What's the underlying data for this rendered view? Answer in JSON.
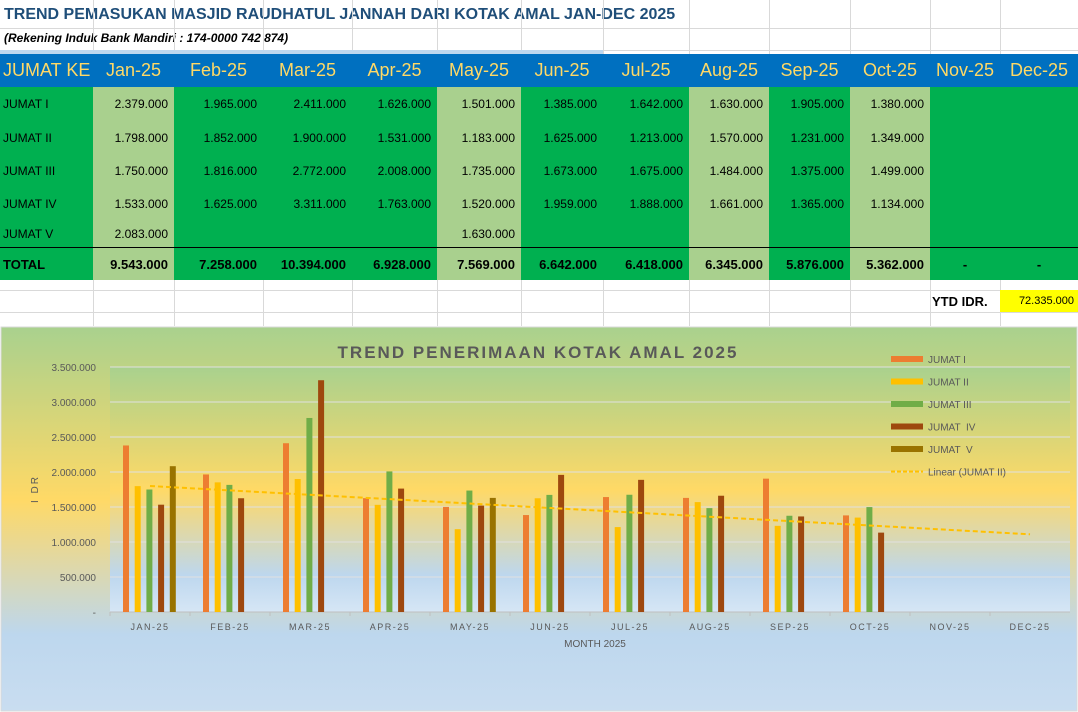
{
  "sheet": {
    "title": "TREND  PEMASUKAN MASJID RAUDHATUL JANNAH DARI KOTAK AMAL JAN-DEC 2025",
    "subtitle": "(Rekening Induk Bank Mandiri :  174-0000 742 874)",
    "header": [
      "JUMAT KE",
      "Jan-25",
      "Feb-25",
      "Mar-25",
      "Apr-25",
      "May-25",
      "Jun-25",
      "Jul-25",
      "Aug-25",
      "Sep-25",
      "Oct-25",
      "Nov-25",
      "Dec-25"
    ],
    "rows": [
      {
        "label": "JUMAT I",
        "values": [
          "2.379.000",
          "1.965.000",
          "2.411.000",
          "1.626.000",
          "1.501.000",
          "1.385.000",
          "1.642.000",
          "1.630.000",
          "1.905.000",
          "1.380.000",
          "",
          ""
        ]
      },
      {
        "label": "JUMAT II",
        "values": [
          "1.798.000",
          "1.852.000",
          "1.900.000",
          "1.531.000",
          "1.183.000",
          "1.625.000",
          "1.213.000",
          "1.570.000",
          "1.231.000",
          "1.349.000",
          "",
          ""
        ]
      },
      {
        "label": "JUMAT III",
        "values": [
          "1.750.000",
          "1.816.000",
          "2.772.000",
          "2.008.000",
          "1.735.000",
          "1.673.000",
          "1.675.000",
          "1.484.000",
          "1.375.000",
          "1.499.000",
          "",
          ""
        ]
      },
      {
        "label": "JUMAT  IV",
        "values": [
          "1.533.000",
          "1.625.000",
          "3.311.000",
          "1.763.000",
          "1.520.000",
          "1.959.000",
          "1.888.000",
          "1.661.000",
          "1.365.000",
          "1.134.000",
          "",
          ""
        ]
      },
      {
        "label": "JUMAT  V",
        "values": [
          "2.083.000",
          "",
          "",
          "",
          "1.630.000",
          "",
          "",
          "",
          "",
          "",
          "",
          ""
        ]
      }
    ],
    "total": {
      "label": "TOTAL",
      "values": [
        "9.543.000",
        "7.258.000",
        "10.394.000",
        "6.928.000",
        "7.569.000",
        "6.642.000",
        "6.418.000",
        "6.345.000",
        "5.876.000",
        "5.362.000",
        "-",
        "-"
      ]
    },
    "ytd_label": "YTD IDR.",
    "ytd_value": "72.335.000",
    "colors": {
      "header_bg": "#0070C0",
      "header_text": "#FFD966",
      "green": "#00B050",
      "light_green": "#A9D08E",
      "ytd": "#FFFF00",
      "title": "#1F4E79"
    }
  },
  "chart_data": {
    "type": "bar",
    "title": "TREND PENERIMAAN KOTAK AMAL 2025",
    "xlabel": "MONTH 2025",
    "ylabel": "I DR",
    "categories": [
      "JAN-25",
      "FEB-25",
      "MAR-25",
      "APR-25",
      "MAY-25",
      "JUN-25",
      "JUL-25",
      "AUG-25",
      "SEP-25",
      "OCT-25",
      "NOV-25",
      "DEC-25"
    ],
    "ylim": [
      0,
      3500000
    ],
    "yticks": [
      0,
      500000,
      1000000,
      1500000,
      2000000,
      2500000,
      3000000,
      3500000
    ],
    "ytick_labels": [
      "-",
      "500.000",
      "1.000.000",
      "1.500.000",
      "2.000.000",
      "2.500.000",
      "3.000.000",
      "3.500.000"
    ],
    "grid": true,
    "legend": "right",
    "series": [
      {
        "name": "JUMAT I",
        "color": "#ED7D31",
        "values": [
          2379000,
          1965000,
          2411000,
          1626000,
          1501000,
          1385000,
          1642000,
          1630000,
          1905000,
          1380000,
          null,
          null
        ]
      },
      {
        "name": "JUMAT II",
        "color": "#FFC000",
        "values": [
          1798000,
          1852000,
          1900000,
          1531000,
          1183000,
          1625000,
          1213000,
          1570000,
          1231000,
          1349000,
          null,
          null
        ]
      },
      {
        "name": "JUMAT III",
        "color": "#70AD47",
        "values": [
          1750000,
          1816000,
          2772000,
          2008000,
          1735000,
          1673000,
          1675000,
          1484000,
          1375000,
          1499000,
          null,
          null
        ]
      },
      {
        "name": "JUMAT  IV",
        "color": "#9E480E",
        "values": [
          1533000,
          1625000,
          3311000,
          1763000,
          1520000,
          1959000,
          1888000,
          1661000,
          1365000,
          1134000,
          null,
          null
        ]
      },
      {
        "name": "JUMAT  V",
        "color": "#997300",
        "values": [
          2083000,
          null,
          null,
          null,
          1630000,
          null,
          null,
          null,
          null,
          null,
          null,
          null
        ]
      }
    ],
    "trendline": {
      "name": "Linear (JUMAT II)",
      "color": "#FFC000",
      "start": 1800000,
      "end": 1110000
    }
  }
}
